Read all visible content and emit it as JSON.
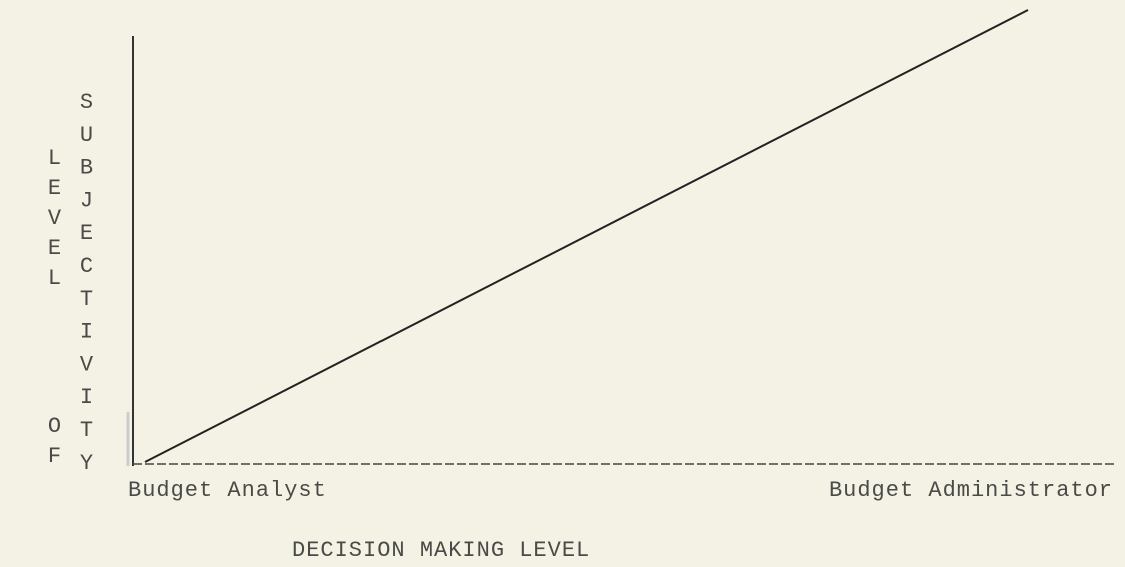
{
  "y_axis": {
    "outer_label": "LEVEL OF",
    "inner_label": "SUBJECTIVITY"
  },
  "x_axis": {
    "left_label": "Budget Analyst",
    "right_label": "Budget Administrator",
    "title": "DECISION MAKING LEVEL"
  }
}
